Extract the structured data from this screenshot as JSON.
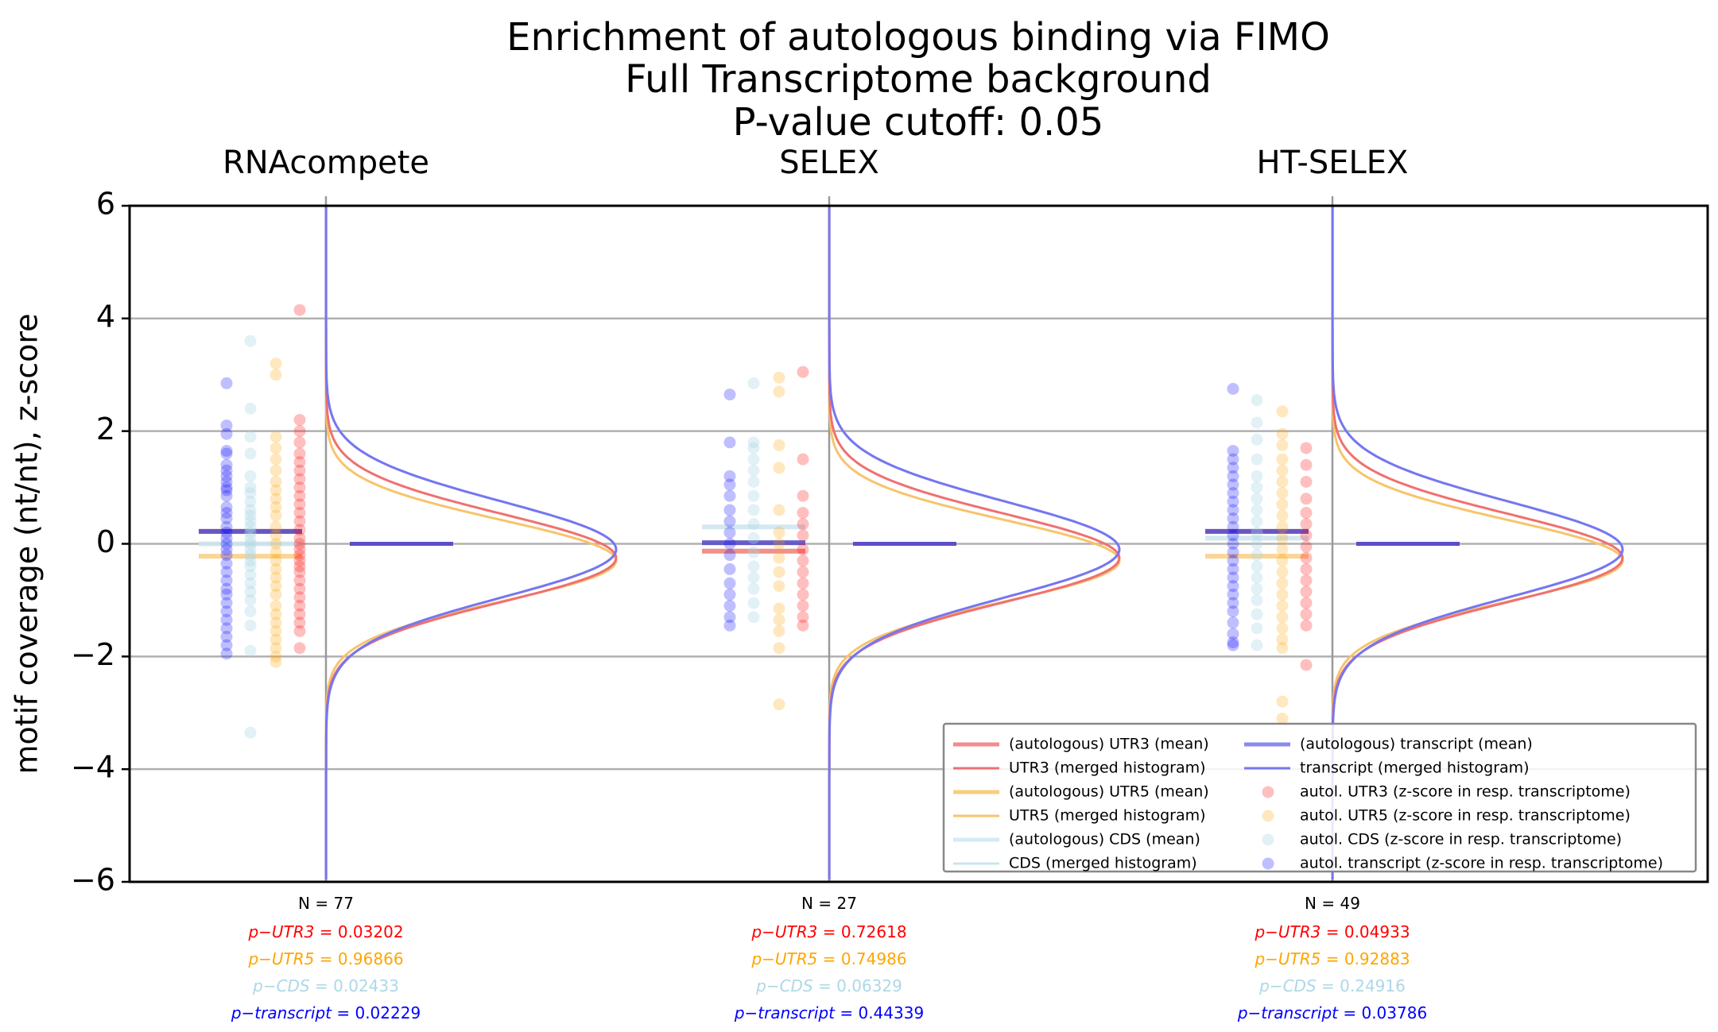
{
  "chart_data": {
    "type": "scatter",
    "title_lines": [
      "Enrichment of autologous binding via FIMO",
      "Full Transcriptome background",
      "P-value cutoff: 0.05"
    ],
    "ylabel": "motif coverage (nt/nt), z-score",
    "ylim": [
      -6,
      6
    ],
    "yticks": [
      "6",
      "4",
      "2",
      "0",
      "−2",
      "−4",
      "−6"
    ],
    "ytick_values": [
      6,
      4,
      2,
      0,
      -2,
      -4,
      -6
    ],
    "grid": true,
    "colors": {
      "UTR3": "#ff0000",
      "UTR5": "#ffa500",
      "CDS": "#add8e6",
      "transcript": "#0000ff",
      "hist_UTR3": "#f07070",
      "hist_UTR5": "#f7c46c",
      "hist_CDS": "#c9e4ee",
      "hist_transcript": "#7676f0",
      "grid": "#b0b0b0",
      "mean_transcript_line": "#5a4fc8"
    },
    "groups": [
      {
        "name": "RNAcompete",
        "n_label": "N = 77",
        "stats": [
          {
            "key": "UTR3",
            "label": "p−UTR3",
            "value": "= 0.03202"
          },
          {
            "key": "UTR5",
            "label": "p−UTR5",
            "value": "= 0.96866"
          },
          {
            "key": "CDS",
            "label": "p−CDS",
            "value": "= 0.02433"
          },
          {
            "key": "transcript",
            "label": "p−transcript",
            "value": "= 0.02229"
          }
        ],
        "means": {
          "transcript": 0.22,
          "CDS": 0.0,
          "UTR5": -0.22,
          "UTR3": 0.22
        },
        "points": {
          "transcript": [
            2.85,
            2.1,
            1.95,
            1.65,
            1.6,
            1.4,
            1.3,
            1.2,
            1.1,
            1.0,
            0.95,
            0.85,
            0.65,
            0.55,
            0.45,
            0.3,
            0.2,
            0.1,
            0.0,
            -0.1,
            -0.2,
            -0.35,
            -0.5,
            -0.65,
            -0.8,
            -0.9,
            -1.05,
            -1.2,
            -1.35,
            -1.5,
            -1.65,
            -1.8,
            -1.95
          ],
          "CDS": [
            3.6,
            2.4,
            1.9,
            1.6,
            1.2,
            1.0,
            0.9,
            0.75,
            0.6,
            0.5,
            0.4,
            0.3,
            0.2,
            0.1,
            0.0,
            -0.1,
            -0.2,
            -0.3,
            -0.4,
            -0.55,
            -0.7,
            -0.85,
            -1.0,
            -1.2,
            -1.45,
            -1.9,
            -3.35
          ],
          "UTR5": [
            3.2,
            3.0,
            1.9,
            1.7,
            1.5,
            1.3,
            1.1,
            0.95,
            0.8,
            0.65,
            0.5,
            0.3,
            0.15,
            0.0,
            -0.15,
            -0.3,
            -0.45,
            -0.6,
            -0.75,
            -0.9,
            -1.1,
            -1.25,
            -1.4,
            -1.55,
            -1.7,
            -1.85,
            -2.0,
            -2.1
          ],
          "UTR3": [
            4.15,
            2.2,
            2.0,
            1.8,
            1.6,
            1.45,
            1.3,
            1.15,
            1.0,
            0.85,
            0.7,
            0.55,
            0.4,
            0.25,
            0.1,
            0.0,
            -0.1,
            -0.2,
            -0.3,
            -0.4,
            -0.5,
            -0.65,
            -0.8,
            -0.95,
            -1.1,
            -1.25,
            -1.4,
            -1.55,
            -1.85
          ]
        }
      },
      {
        "name": "SELEX",
        "n_label": "N = 27",
        "stats": [
          {
            "key": "UTR3",
            "label": "p−UTR3",
            "value": "= 0.72618"
          },
          {
            "key": "UTR5",
            "label": "p−UTR5",
            "value": "= 0.74986"
          },
          {
            "key": "CDS",
            "label": "p−CDS",
            "value": "= 0.06329"
          },
          {
            "key": "transcript",
            "label": "p−transcript",
            "value": "= 0.44339"
          }
        ],
        "means": {
          "transcript": 0.02,
          "CDS": 0.3,
          "UTR5": -0.13,
          "UTR3": -0.13
        },
        "points": {
          "transcript": [
            2.65,
            1.8,
            1.2,
            1.05,
            0.85,
            0.6,
            0.4,
            0.2,
            0.0,
            -0.2,
            -0.45,
            -0.7,
            -0.9,
            -1.1,
            -1.3,
            -1.45
          ],
          "CDS": [
            2.85,
            1.8,
            1.7,
            1.5,
            1.3,
            1.1,
            0.85,
            0.6,
            0.35,
            0.1,
            -0.15,
            -0.4,
            -0.6,
            -0.8,
            -1.05,
            -1.3
          ],
          "UTR5": [
            2.95,
            2.7,
            1.75,
            1.35,
            0.6,
            0.2,
            0.0,
            -0.25,
            -0.5,
            -0.75,
            -1.15,
            -1.35,
            -1.55,
            -1.85,
            -2.85
          ],
          "UTR3": [
            3.05,
            1.5,
            0.85,
            0.55,
            0.35,
            0.15,
            -0.1,
            -0.3,
            -0.5,
            -0.7,
            -0.9,
            -1.1,
            -1.3,
            -1.45
          ]
        }
      },
      {
        "name": "HT-SELEX",
        "n_label": "N = 49",
        "stats": [
          {
            "key": "UTR3",
            "label": "p−UTR3",
            "value": "= 0.04933"
          },
          {
            "key": "UTR5",
            "label": "p−UTR5",
            "value": "= 0.92883"
          },
          {
            "key": "CDS",
            "label": "p−CDS",
            "value": "= 0.24916"
          },
          {
            "key": "transcript",
            "label": "p−transcript",
            "value": "= 0.03786"
          }
        ],
        "means": {
          "transcript": 0.22,
          "CDS": 0.1,
          "UTR5": -0.22,
          "UTR3": 0.22
        },
        "points": {
          "transcript": [
            2.75,
            1.65,
            1.5,
            1.35,
            1.2,
            1.05,
            0.9,
            0.75,
            0.6,
            0.45,
            0.3,
            0.15,
            0.0,
            -0.15,
            -0.3,
            -0.45,
            -0.6,
            -0.75,
            -0.9,
            -1.05,
            -1.2,
            -1.4,
            -1.6,
            -1.75,
            -1.8
          ],
          "CDS": [
            2.55,
            2.15,
            1.85,
            1.5,
            1.2,
            1.0,
            0.8,
            0.6,
            0.4,
            0.2,
            0.0,
            -0.2,
            -0.4,
            -0.6,
            -0.8,
            -1.0,
            -1.25,
            -1.5,
            -1.8
          ],
          "UTR5": [
            2.35,
            1.95,
            1.75,
            1.5,
            1.3,
            1.1,
            0.9,
            0.7,
            0.5,
            0.3,
            0.1,
            -0.1,
            -0.3,
            -0.5,
            -0.7,
            -0.9,
            -1.1,
            -1.3,
            -1.5,
            -1.7,
            -1.85,
            -2.8,
            -3.1
          ],
          "UTR3": [
            1.7,
            1.4,
            1.1,
            0.8,
            0.55,
            0.35,
            0.15,
            -0.05,
            -0.25,
            -0.45,
            -0.65,
            -0.85,
            -1.05,
            -1.25,
            -1.45,
            -2.15
          ]
        }
      }
    ],
    "histograms": [
      {
        "key": "UTR3",
        "mu": -0.25,
        "sigma": 0.78,
        "scale": 365
      },
      {
        "key": "UTR5",
        "mu": -0.3,
        "sigma": 0.72,
        "scale": 365
      },
      {
        "key": "CDS",
        "mu": -0.1,
        "sigma": 0.85,
        "scale": 365
      },
      {
        "key": "transcript",
        "mu": -0.1,
        "sigma": 0.85,
        "scale": 365
      }
    ],
    "legend": {
      "placement": "lower-right",
      "items": [
        {
          "key": "UTR3",
          "kind": "mean",
          "label": "(autologous) UTR3 (mean)"
        },
        {
          "key": "UTR3",
          "kind": "hist",
          "label": "UTR3 (merged histogram)"
        },
        {
          "key": "UTR5",
          "kind": "mean",
          "label": "(autologous) UTR5 (mean)"
        },
        {
          "key": "UTR5",
          "kind": "hist",
          "label": "UTR5 (merged histogram)"
        },
        {
          "key": "CDS",
          "kind": "mean",
          "label": "(autologous) CDS (mean)"
        },
        {
          "key": "CDS",
          "kind": "hist",
          "label": "CDS (merged histogram)"
        },
        {
          "key": "transcript",
          "kind": "mean",
          "label": "(autologous) transcript (mean)"
        },
        {
          "key": "transcript",
          "kind": "hist",
          "label": "transcript (merged histogram)"
        },
        {
          "key": "UTR3",
          "kind": "dot",
          "label": "autol. UTR3 (z-score in resp. transcriptome)"
        },
        {
          "key": "UTR5",
          "kind": "dot",
          "label": "autol. UTR5 (z-score in resp. transcriptome)"
        },
        {
          "key": "CDS",
          "kind": "dot",
          "label": "autol. CDS (z-score in resp. transcriptome)"
        },
        {
          "key": "transcript",
          "kind": "dot",
          "label": "autol. transcript (z-score in resp. transcriptome)"
        }
      ]
    }
  }
}
